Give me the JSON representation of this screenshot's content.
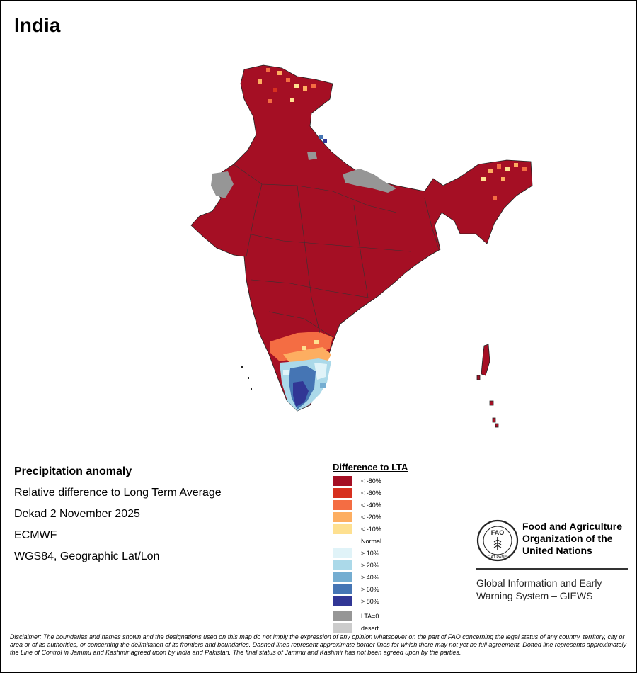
{
  "map": {
    "country": "India",
    "colors": {
      "lt_neg80": "#a50f24",
      "lt_neg60": "#d7301f",
      "lt_neg40": "#f46d43",
      "lt_neg20": "#fdae61",
      "lt_neg10": "#fee090",
      "normal": "#ffffff",
      "gt10": "#e0f3f8",
      "gt20": "#abd9e9",
      "gt40": "#74add1",
      "gt60": "#4575b4",
      "gt80": "#313695",
      "lta0": "#969696",
      "desert": "#cccccc"
    }
  },
  "info": {
    "heading": "Precipitation anomaly",
    "subtitle": "Relative difference to Long Term Average",
    "period": "Dekad 2 November 2025",
    "model": "ECMWF",
    "projection": "WGS84, Geographic Lat/Lon"
  },
  "legend": {
    "title": "Difference to LTA",
    "items": [
      {
        "label": "< -80%",
        "color": "#a50f24"
      },
      {
        "label": "< -60%",
        "color": "#d7301f"
      },
      {
        "label": "< -40%",
        "color": "#f46d43"
      },
      {
        "label": "< -20%",
        "color": "#fdae61"
      },
      {
        "label": "< -10%",
        "color": "#fee090"
      },
      {
        "label": "Normal",
        "color": "#ffffff"
      },
      {
        "label": "> 10%",
        "color": "#e0f3f8"
      },
      {
        "label": "> 20%",
        "color": "#abd9e9"
      },
      {
        "label": "> 40%",
        "color": "#74add1"
      },
      {
        "label": "> 60%",
        "color": "#4575b4"
      },
      {
        "label": "> 80%",
        "color": "#313695"
      }
    ],
    "extra": [
      {
        "label": "LTA=0",
        "color": "#969696"
      },
      {
        "label": "desert",
        "color": "#cccccc"
      }
    ]
  },
  "org": {
    "logo_text": "FAO",
    "logo_motto": "FIAT PANIS",
    "name_line1": "Food and Agriculture",
    "name_line2": "Organization of the",
    "name_line3": "United Nations",
    "system_line1": "Global Information and Early",
    "system_line2": "Warning System – GIEWS"
  },
  "disclaimer": "Disclaimer: The boundaries and names shown and the designations used on this map do not imply the expression of any opinion whatsoever on the part of FAO concerning the legal status of any country, territory, city or area or of its authorities, or concerning the delimitation of its frontiers and boundaries. Dashed lines represent approximate border lines for which there may not yet be full agreement. Dotted line represents approximately the Line of Control in Jammu and Kashmir agreed upon by India and Pakistan. The final status of Jammu and Kashmir has not been agreed upon by the parties."
}
